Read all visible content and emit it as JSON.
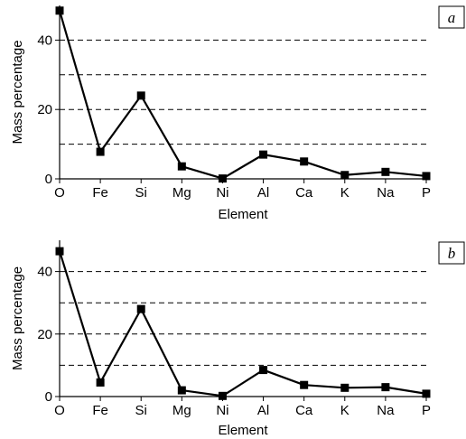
{
  "chart_data": [
    {
      "type": "line",
      "panel_label": "a",
      "categories": [
        "O",
        "Fe",
        "Si",
        "Mg",
        "Ni",
        "Al",
        "Ca",
        "K",
        "Na",
        "P"
      ],
      "series": [
        {
          "values": [
            48.5,
            7.8,
            24,
            3.6,
            0.1,
            7,
            5,
            1.1,
            2,
            0.8
          ]
        }
      ],
      "xlabel": "Element",
      "ylabel": "Mass percentage",
      "ylim": [
        0,
        50
      ],
      "yticks": [
        0,
        20,
        40
      ],
      "gridlines": [
        10,
        20,
        30,
        40
      ],
      "grid_style": "dashed",
      "marker": "square",
      "line_color": "#000000"
    },
    {
      "type": "line",
      "panel_label": "b",
      "categories": [
        "O",
        "Fe",
        "Si",
        "Mg",
        "Ni",
        "Al",
        "Ca",
        "K",
        "Na",
        "P"
      ],
      "series": [
        {
          "values": [
            46.5,
            4.5,
            28,
            2,
            0.2,
            8.5,
            3.7,
            2.8,
            3,
            0.9
          ]
        }
      ],
      "xlabel": "Element",
      "ylabel": "Mass percentage",
      "ylim": [
        0,
        50
      ],
      "yticks": [
        0,
        20,
        40
      ],
      "gridlines": [
        10,
        20,
        30,
        40
      ],
      "grid_style": "dashed",
      "marker": "square",
      "line_color": "#000000"
    }
  ]
}
